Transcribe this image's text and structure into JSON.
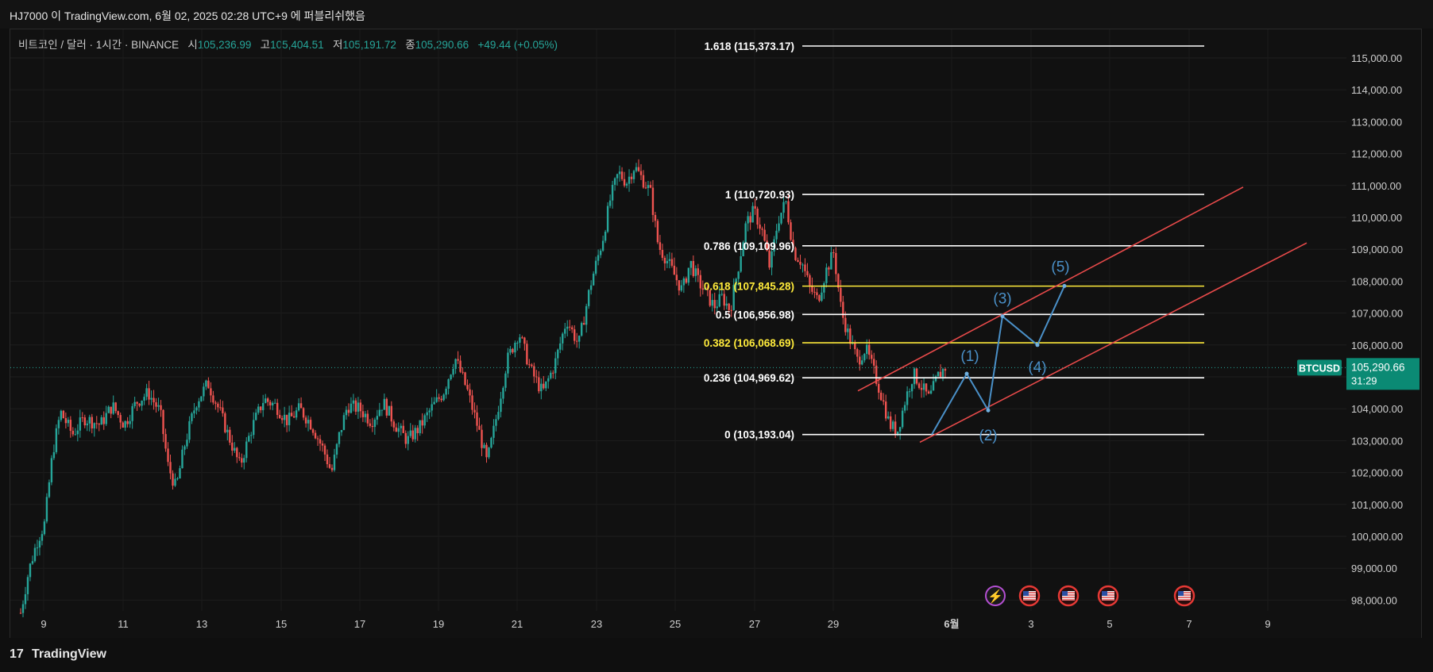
{
  "window": {
    "title": "HJ7000 이 TradingView.com, 6월 02, 2025 02:28 UTC+9 에 퍼블리쉬했음"
  },
  "symbol": {
    "name": "비트코인 / 달러 · 1시간 · BINANCE",
    "open_label": "시",
    "open": "105,236.99",
    "high_label": "고",
    "high": "105,404.51",
    "low_label": "저",
    "low": "105,191.72",
    "close_label": "종",
    "close": "105,290.66",
    "change": "+49.44 (+0.05%)"
  },
  "footer": {
    "brand": "TradingView",
    "logo": "17"
  },
  "colors": {
    "up": "#26a69a",
    "down": "#ef5350",
    "fib_white": "#ffffff",
    "fib_yellow": "#ffeb3b",
    "channel": "#e84a4a",
    "wave": "#4a90c8"
  },
  "icons": [
    "lightning-icon",
    "us-flag-icon",
    "us-flag-icon",
    "us-flag-icon",
    "us-flag-icon"
  ],
  "chart_data": {
    "type": "candlestick",
    "ylim": [
      97500,
      115800
    ],
    "x_ticks": [
      "9",
      "11",
      "13",
      "15",
      "17",
      "19",
      "21",
      "23",
      "25",
      "27",
      "29",
      "6월",
      "3",
      "5",
      "7",
      "9"
    ],
    "y_ticks": [
      "115,000.00",
      "114,000.00",
      "113,000.00",
      "112,000.00",
      "111,000.00",
      "110,000.00",
      "109,000.00",
      "108,000.00",
      "107,000.00",
      "106,000.00",
      "105,000.00",
      "104,000.00",
      "103,000.00",
      "102,000.00",
      "101,000.00",
      "100,000.00",
      "99,000.00",
      "98,000.00"
    ],
    "last_price": {
      "label": "BTCUSD",
      "value": "105,290.66",
      "countdown": "31:29",
      "price": 105290.66
    },
    "fib_levels": [
      {
        "label": "1.618 (115,373.17)",
        "price": 115373.17,
        "color": "white"
      },
      {
        "label": "1 (110,720.93)",
        "price": 110720.93,
        "color": "white"
      },
      {
        "label": "0.786 (109,109.96)",
        "price": 109109.96,
        "color": "white"
      },
      {
        "label": "0.618 (107,845.28)",
        "price": 107845.28,
        "color": "yellow"
      },
      {
        "label": "0.5 (106,956.98)",
        "price": 106956.98,
        "color": "white"
      },
      {
        "label": "0.382 (106,068.69)",
        "price": 106068.69,
        "color": "yellow"
      },
      {
        "label": "0.236 (104,969.62)",
        "price": 104969.62,
        "color": "white"
      },
      {
        "label": "0 (103,193.04)",
        "price": 103193.04,
        "color": "white"
      }
    ],
    "waves": [
      {
        "label": "(1)",
        "price": 105100
      },
      {
        "label": "(2)",
        "price": 103950
      },
      {
        "label": "(3)",
        "price": 106900
      },
      {
        "label": "(4)",
        "price": 106000
      },
      {
        "label": "(5)",
        "price": 107850
      }
    ],
    "wave_path_prices": [
      103193,
      105100,
      103950,
      106900,
      106000,
      107850
    ],
    "price_path": [
      [
        0,
        97600
      ],
      [
        0.02,
        98900
      ],
      [
        0.04,
        99800
      ],
      [
        0.06,
        100400
      ],
      [
        0.08,
        102600
      ],
      [
        0.1,
        103900
      ],
      [
        0.13,
        103200
      ],
      [
        0.16,
        103700
      ],
      [
        0.2,
        103500
      ],
      [
        0.23,
        104100
      ],
      [
        0.26,
        103500
      ],
      [
        0.29,
        104200
      ],
      [
        0.32,
        104500
      ],
      [
        0.35,
        103900
      ],
      [
        0.37,
        102200
      ],
      [
        0.39,
        101500
      ],
      [
        0.41,
        102800
      ],
      [
        0.44,
        104200
      ],
      [
        0.47,
        104800
      ],
      [
        0.5,
        103900
      ],
      [
        0.52,
        103200
      ],
      [
        0.55,
        102200
      ],
      [
        0.58,
        103400
      ],
      [
        0.61,
        104300
      ],
      [
        0.64,
        104100
      ],
      [
        0.67,
        103600
      ],
      [
        0.7,
        104000
      ],
      [
        0.73,
        103500
      ],
      [
        0.76,
        102700
      ],
      [
        0.78,
        102000
      ],
      [
        0.8,
        103200
      ],
      [
        0.82,
        104100
      ],
      [
        0.85,
        104000
      ],
      [
        0.88,
        103600
      ],
      [
        0.91,
        104200
      ],
      [
        0.94,
        103500
      ],
      [
        0.97,
        103000
      ],
      [
        1.0,
        103400
      ],
      [
        1.03,
        104000
      ],
      [
        1.06,
        104500
      ],
      [
        1.09,
        105600
      ],
      [
        1.12,
        104600
      ],
      [
        1.15,
        103300
      ],
      [
        1.17,
        102300
      ],
      [
        1.19,
        103500
      ],
      [
        1.22,
        105500
      ],
      [
        1.25,
        106400
      ],
      [
        1.28,
        105200
      ],
      [
        1.31,
        104500
      ],
      [
        1.34,
        105400
      ],
      [
        1.37,
        106800
      ],
      [
        1.4,
        106000
      ],
      [
        1.43,
        107900
      ],
      [
        1.46,
        109300
      ],
      [
        1.48,
        110600
      ],
      [
        1.5,
        111400
      ],
      [
        1.52,
        111100
      ],
      [
        1.54,
        111600
      ],
      [
        1.56,
        111200
      ],
      [
        1.58,
        110800
      ],
      [
        1.6,
        109100
      ],
      [
        1.62,
        108700
      ],
      [
        1.64,
        108200
      ],
      [
        1.66,
        107700
      ],
      [
        1.68,
        108600
      ],
      [
        1.7,
        108000
      ],
      [
        1.72,
        107600
      ],
      [
        1.74,
        107200
      ],
      [
        1.76,
        107500
      ],
      [
        1.78,
        107100
      ],
      [
        1.8,
        108400
      ],
      [
        1.82,
        109800
      ],
      [
        1.84,
        110200
      ],
      [
        1.86,
        109600
      ],
      [
        1.88,
        108400
      ],
      [
        1.9,
        109900
      ],
      [
        1.92,
        110500
      ],
      [
        1.94,
        108900
      ],
      [
        1.96,
        108600
      ],
      [
        1.98,
        107800
      ],
      [
        2.0,
        107400
      ],
      [
        2.02,
        108300
      ],
      [
        2.04,
        108900
      ],
      [
        2.06,
        107000
      ],
      [
        2.08,
        106200
      ],
      [
        2.1,
        105500
      ],
      [
        2.12,
        105900
      ],
      [
        2.14,
        105200
      ],
      [
        2.16,
        104400
      ],
      [
        2.18,
        103500
      ],
      [
        2.2,
        103300
      ],
      [
        2.22,
        104300
      ],
      [
        2.24,
        105100
      ],
      [
        2.26,
        104700
      ],
      [
        2.28,
        104300
      ],
      [
        2.3,
        105000
      ],
      [
        2.32,
        105300
      ]
    ]
  }
}
